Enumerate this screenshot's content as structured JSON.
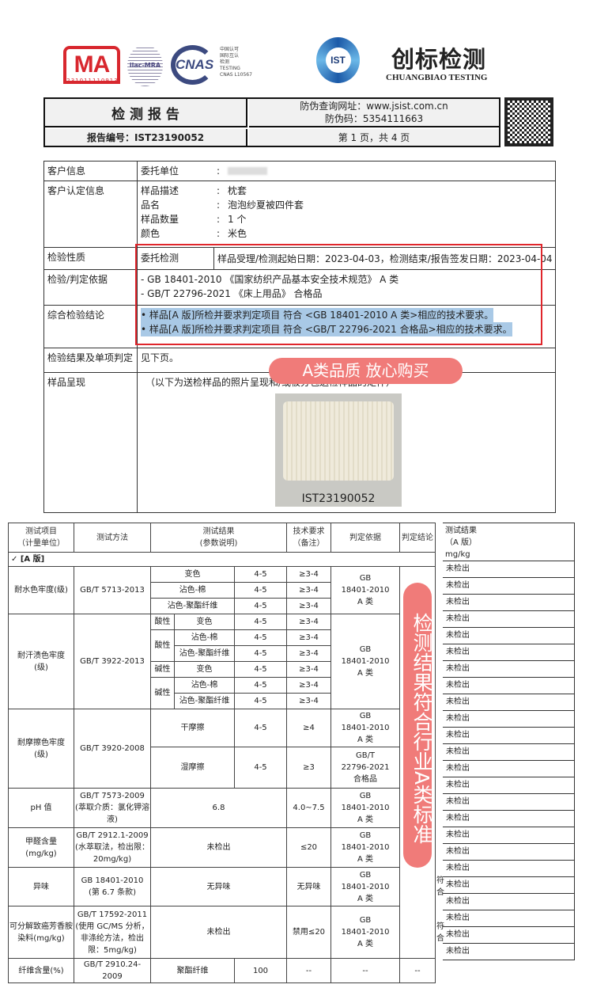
{
  "logos": {
    "cma_text": "MA",
    "cma_number": "231011110913",
    "ilac_text": "ilac-MRA",
    "cnas_text": "CNAS",
    "cnas_caption": "中国认可\n国际互认\n检测\nTESTING\nCNAS L10567",
    "ist_text": "IST",
    "brand_cn": "创标检测",
    "brand_en": "CHUANGBIAO TESTING"
  },
  "header": {
    "title": "检 测 报 告",
    "verify_url": "防伪查询网址：www.jsist.com.cn",
    "verify_code": "防伪码：5354111663",
    "report_no": "报告编号：IST23190052",
    "page": "第 1 页，共 4 页"
  },
  "info": {
    "client_label": "客户信息",
    "client_key": "委托单位",
    "client_value": "",
    "cust_label": "客户认定信息",
    "cust_items": [
      {
        "k": "样品描述",
        "v": "枕套"
      },
      {
        "k": "品名",
        "v": "泡泡纱夏被四件套"
      },
      {
        "k": "样品数量",
        "v": "1 个"
      },
      {
        "k": "颜色",
        "v": "米色"
      }
    ],
    "nature_label": "检验性质",
    "nature_value": "委托检测",
    "dates": "样品受理/检测起始日期：2023-04-03，检测结束/报告签发日期：2023-04-04",
    "basis_label": "检验/判定依据",
    "basis": [
      "-  GB 18401-2010 《国家纺织产品基本安全技术规范》  A 类",
      "-  GB/T 22796-2021 《床上用品》  合格品"
    ],
    "concl_label": "综合检验结论",
    "concl": [
      "• 样品[A 版]所检并要求判定项目 符合 <GB 18401-2010 A 类>相应的技术要求。",
      "• 样品[A 版]所检并要求判定项目 符合 <GB/T 22796-2021 合格品>相应的技术要求。"
    ],
    "result_label": "检验结果及单项判定",
    "result_value": "见下页。",
    "sample_label": "样品呈现",
    "sample_note": "（以下为送检样品的照片呈现和/或被分包送检样品的矩件）",
    "photo_label": "IST23190052"
  },
  "badge": "A类品质 放心购买",
  "banner": "检测结果符合行业A类标准",
  "table": {
    "headers": [
      "测试项目\n（计量单位）",
      "测试方法",
      "测试结果\n(参数说明)",
      "技术要求\n（备注）",
      "判定依据",
      "判定结论"
    ],
    "section": "✓  [A 版]",
    "water": {
      "item": "耐水色牢度(级)",
      "method": "GB/T 5713-2013",
      "rows": [
        [
          "变色",
          "4-5",
          "≥3-4"
        ],
        [
          "沾色-棉",
          "4-5",
          "≥3-4"
        ],
        [
          "沾色-聚酯纤维",
          "4-5",
          "≥3-4"
        ]
      ],
      "basis": "GB\n18401-2010\nA 类"
    },
    "sweat": {
      "item": "耐汗渍色牢度\n(级)",
      "method": "GB/T 3922-2013",
      "acid": "酸性",
      "alkali": "碱性",
      "rows": [
        [
          "变色",
          "4-5",
          "≥3-4"
        ],
        [
          "沾色-棉",
          "4-5",
          "≥3-4"
        ],
        [
          "沾色-聚酯纤维",
          "4-5",
          "≥3-4"
        ],
        [
          "变色",
          "4-5",
          "≥3-4"
        ],
        [
          "沾色-棉",
          "4-5",
          "≥3-4"
        ],
        [
          "沾色-聚酯纤维",
          "4-5",
          "≥3-4"
        ]
      ],
      "basis": "GB\n18401-2010\nA 类"
    },
    "rub": {
      "item": "耐摩擦色牢度\n(级)",
      "method": "GB/T 3920-2008",
      "rows": [
        [
          "干摩擦",
          "4-5",
          "≥4",
          "GB\n18401-2010\nA 类"
        ],
        [
          "湿摩擦",
          "4-5",
          "≥3",
          "GB/T\n22796-2021\n合格品"
        ]
      ]
    },
    "ph": {
      "item": "pH 值",
      "method": "GB/T 7573-2009\n(萃取介质：氯化钾溶液)",
      "result": "6.8",
      "req": "4.0~7.5",
      "basis": "GB\n18401-2010\nA 类"
    },
    "hcho": {
      "item": "甲醛含量\n(mg/kg)",
      "method": "GB/T 2912.1-2009\n(水萃取法，检出限：20mg/kg)",
      "result": "未检出",
      "req": "≤20",
      "basis": "GB\n18401-2010\nA 类"
    },
    "odor": {
      "item": "异味",
      "method": "GB 18401-2010\n(第 6.7 条款)",
      "result": "无异味",
      "req": "无异味",
      "basis": "GB\n18401-2010\nA 类",
      "concl": "符合"
    },
    "amine": {
      "item": "可分解致癌芳香胺染料(mg/kg)",
      "method": "GB/T 17592-2011\n(使用 GC/MS 分析，非涤纶方法，检出限：5mg/kg)",
      "result": "未检出",
      "req": "禁用≤20",
      "basis": "GB\n18401-2010\nA 类",
      "concl": "符合"
    },
    "fiber": {
      "item": "纤维含量(%)",
      "method": "GB/T 2910.24-2009",
      "fiber": "聚酯纤维",
      "value": "100",
      "req": "--",
      "basis": "--",
      "concl": "--"
    }
  },
  "side": {
    "header": "测试结果\n（A 版）\nmg/kg",
    "rows": [
      "未检出",
      "未检出",
      "未检出",
      "未检出",
      "未检出",
      "未检出",
      "未检出",
      "未检出",
      "未检出",
      "未检出",
      "未检出",
      "未检出",
      "未检出",
      "未检出",
      "未检出",
      "未检出",
      "未检出",
      "未检出",
      "未检出",
      "未检出",
      "未检出",
      "未检出",
      "未检出",
      "未检出"
    ]
  },
  "colors": {
    "red": "#e0262c",
    "pink": "#f07b79",
    "highlight": "#a9c9e6",
    "brand_blue": "#1c5aa8"
  }
}
